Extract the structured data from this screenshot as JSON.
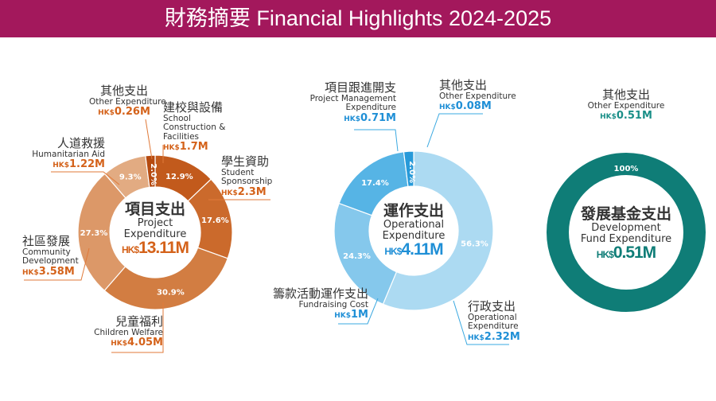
{
  "title": "財務摘要 Financial Highlights 2024-2025",
  "currency": "HK$",
  "chart_data": [
    {
      "type": "pie",
      "title_zh": "項目支出",
      "title_en": "Project Expenditure",
      "total": "13.11M",
      "slices": [
        {
          "zh": "建校與設備",
          "en": "School Construction & Facilities",
          "amount": "1.7M",
          "percent": 12.9,
          "pct_label": "12.9%",
          "color": "#c25a1c"
        },
        {
          "zh": "學生資助",
          "en": "Student Sponsorship",
          "amount": "2.3M",
          "percent": 17.6,
          "pct_label": "17.6%",
          "color": "#cb6a2c"
        },
        {
          "zh": "兒童福利",
          "en": "Children Welfare",
          "amount": "4.05M",
          "percent": 30.9,
          "pct_label": "30.9%",
          "color": "#d27d42"
        },
        {
          "zh": "社區發展",
          "en": "Community Development",
          "amount": "3.58M",
          "percent": 27.3,
          "pct_label": "27.3%",
          "color": "#dc9868"
        },
        {
          "zh": "人道救援",
          "en": "Humanitarian Aid",
          "amount": "1.22M",
          "percent": 9.3,
          "pct_label": "9.3%",
          "color": "#e2ab82"
        },
        {
          "zh": "其他支出",
          "en": "Other Expenditure",
          "amount": "0.26M",
          "percent": 2.0,
          "pct_label": "2.0%",
          "color": "#b54a10"
        }
      ]
    },
    {
      "type": "pie",
      "title_zh": "運作支出",
      "title_en": "Operational Expenditure",
      "total": "4.11M",
      "slices": [
        {
          "zh": "行政支出",
          "en": "Operational Expenditure",
          "amount": "2.32M",
          "percent": 56.3,
          "pct_label": "56.3%",
          "color": "#acdaf2"
        },
        {
          "zh": "籌款活動運作支出",
          "en": "Fundraising Cost",
          "amount": "1M",
          "percent": 24.3,
          "pct_label": "24.3%",
          "color": "#85c8ec"
        },
        {
          "zh": "項目跟進開支",
          "en": "Project Management Expenditure",
          "amount": "0.71M",
          "percent": 17.4,
          "pct_label": "17.4%",
          "color": "#56b4e5"
        },
        {
          "zh": "其他支出",
          "en": "Other Expenditure",
          "amount": "0.08M",
          "percent": 2.0,
          "pct_label": "2.0%",
          "color": "#279ad9"
        }
      ]
    },
    {
      "type": "pie",
      "title_zh": "發展基金支出",
      "title_en": "Development Fund Expenditure",
      "total": "0.51M",
      "slices": [
        {
          "zh": "其他支出",
          "en": "Other Expenditure",
          "amount": "0.51M",
          "percent": 100,
          "pct_label": "100%",
          "color": "#0f7d77"
        }
      ]
    }
  ]
}
